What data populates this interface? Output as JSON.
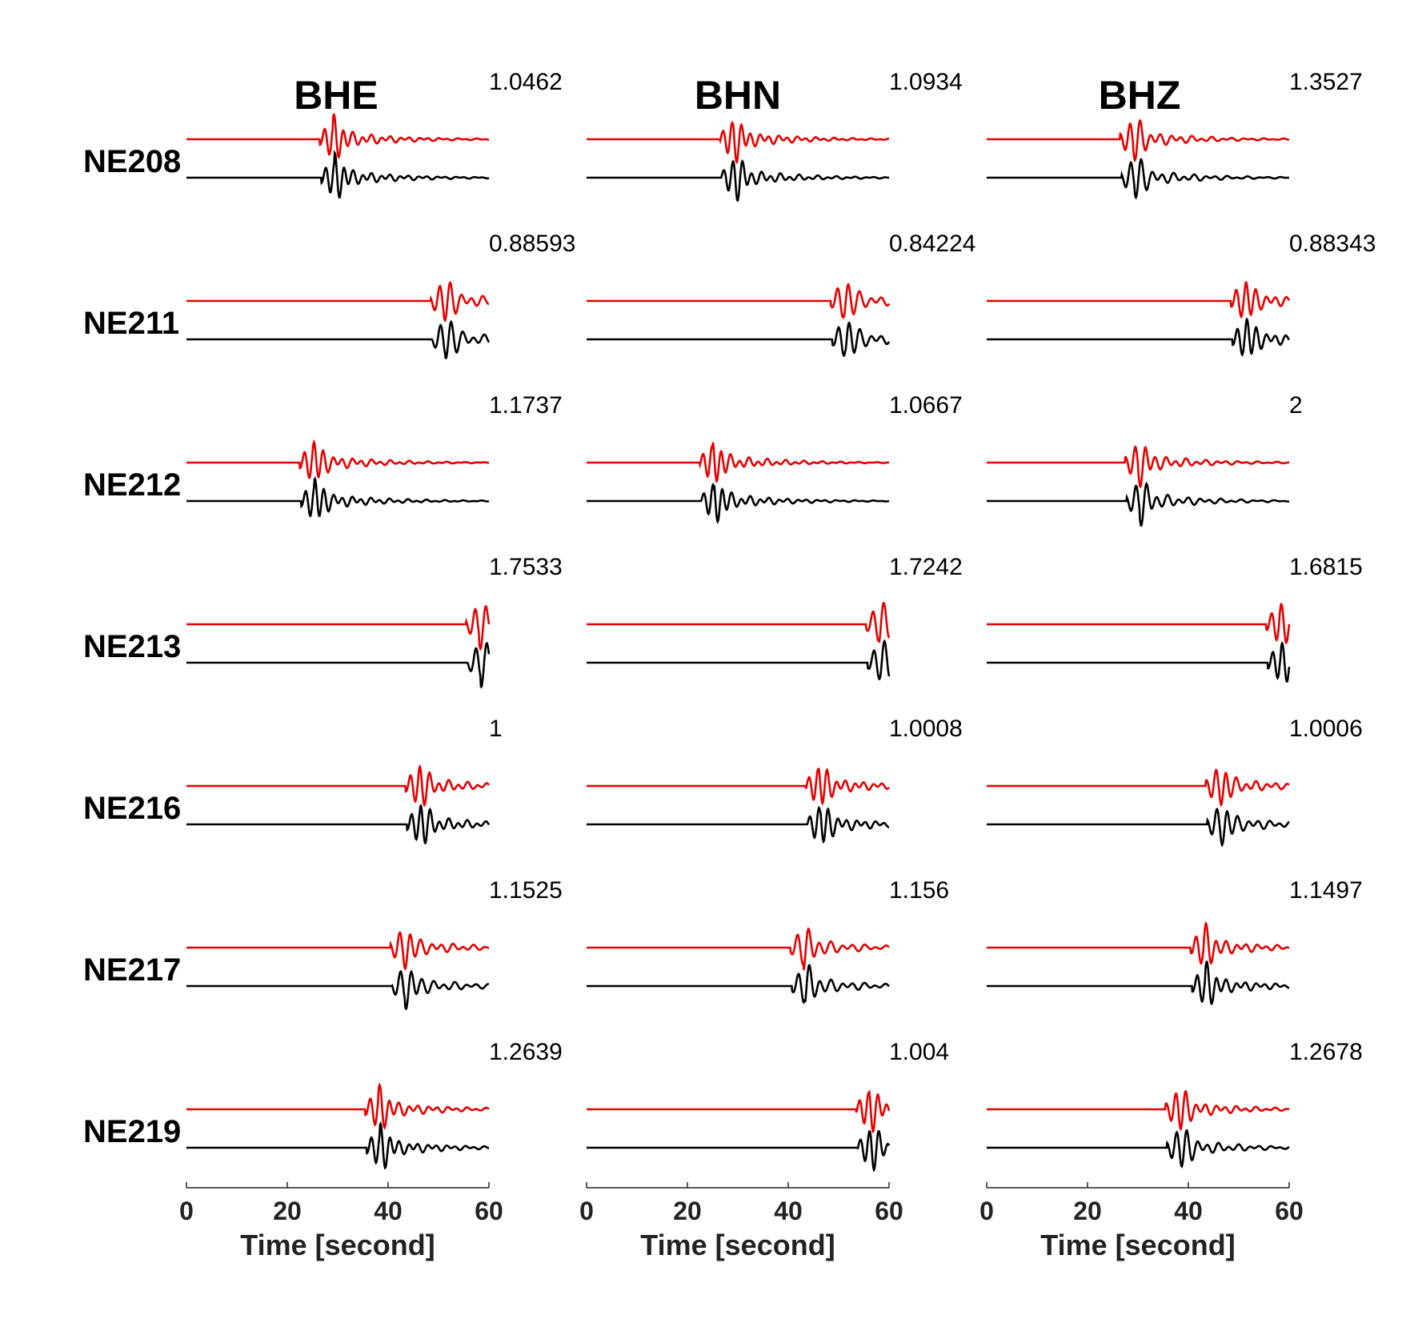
{
  "chart_data": {
    "type": "line",
    "description_hidden": false,
    "components": [
      "BHE",
      "BHN",
      "BHZ"
    ],
    "stations": [
      "NE208",
      "NE211",
      "NE212",
      "NE213",
      "NE216",
      "NE217",
      "NE219"
    ],
    "max_amplitudes": [
      [
        "1.0462",
        "1.0934",
        "1.3527"
      ],
      [
        "0.88593",
        "0.84224",
        "0.88343"
      ],
      [
        "1.1737",
        "1.0667",
        "2"
      ],
      [
        "1.7533",
        "1.7242",
        "1.6815"
      ],
      [
        "1",
        "1.0008",
        "1.0006"
      ],
      [
        "1.1525",
        "1.156",
        "1.1497"
      ],
      [
        "1.2639",
        "1.004",
        "1.2678"
      ]
    ],
    "arrival_times_s": [
      [
        29,
        29,
        29
      ],
      [
        51,
        51,
        51
      ],
      [
        25,
        25,
        30
      ],
      [
        58,
        58,
        58
      ],
      [
        46,
        46,
        46
      ],
      [
        43,
        43,
        43
      ],
      [
        38,
        56,
        38
      ]
    ],
    "series": [
      {
        "name": "",
        "color": "#e60000"
      },
      {
        "name": "",
        "color": "#000000"
      }
    ],
    "xlabel": "Time [second]",
    "xlim": [
      0,
      60
    ],
    "xticks": [
      "0",
      "20",
      "40",
      "60"
    ]
  }
}
